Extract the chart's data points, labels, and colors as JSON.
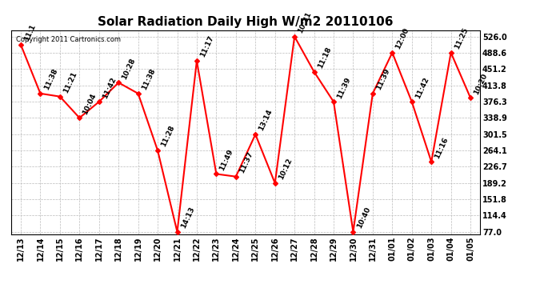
{
  "title": "Solar Radiation Daily High W/m2 20110106",
  "copyright": "Copyright 2011 Cartronics.com",
  "dates": [
    "12/13",
    "12/14",
    "12/15",
    "12/16",
    "12/17",
    "12/18",
    "12/19",
    "12/20",
    "12/21",
    "12/22",
    "12/23",
    "12/24",
    "12/25",
    "12/26",
    "12/27",
    "12/28",
    "12/29",
    "12/30",
    "12/31",
    "01/01",
    "01/02",
    "01/03",
    "01/04",
    "01/05"
  ],
  "values": [
    507,
    395,
    388,
    339,
    376,
    420,
    395,
    264,
    77,
    470,
    210,
    204,
    301,
    189,
    526,
    445,
    376,
    77,
    395,
    489,
    376,
    238,
    489,
    385
  ],
  "times": [
    "11:1",
    "11:38",
    "11:21",
    "10:04",
    "11:42",
    "10:28",
    "11:38",
    "11:28",
    "14:13",
    "11:17",
    "11:49",
    "11:37",
    "13:14",
    "10:12",
    "10:31",
    "11:18",
    "11:39",
    "10:40",
    "11:39",
    "12:00",
    "11:42",
    "11:16",
    "11:25",
    "10:20"
  ],
  "ymin": 77.0,
  "ymax": 526.0,
  "yticks": [
    77.0,
    114.4,
    151.8,
    189.2,
    226.7,
    264.1,
    301.5,
    338.9,
    376.3,
    413.8,
    451.2,
    488.6,
    526.0
  ],
  "line_color": "#ff0000",
  "marker_color": "#ff0000",
  "bg_color": "#ffffff",
  "grid_color": "#bbbbbb",
  "title_fontsize": 11,
  "label_fontsize": 6.5,
  "tick_fontsize": 7,
  "copyright_fontsize": 6
}
